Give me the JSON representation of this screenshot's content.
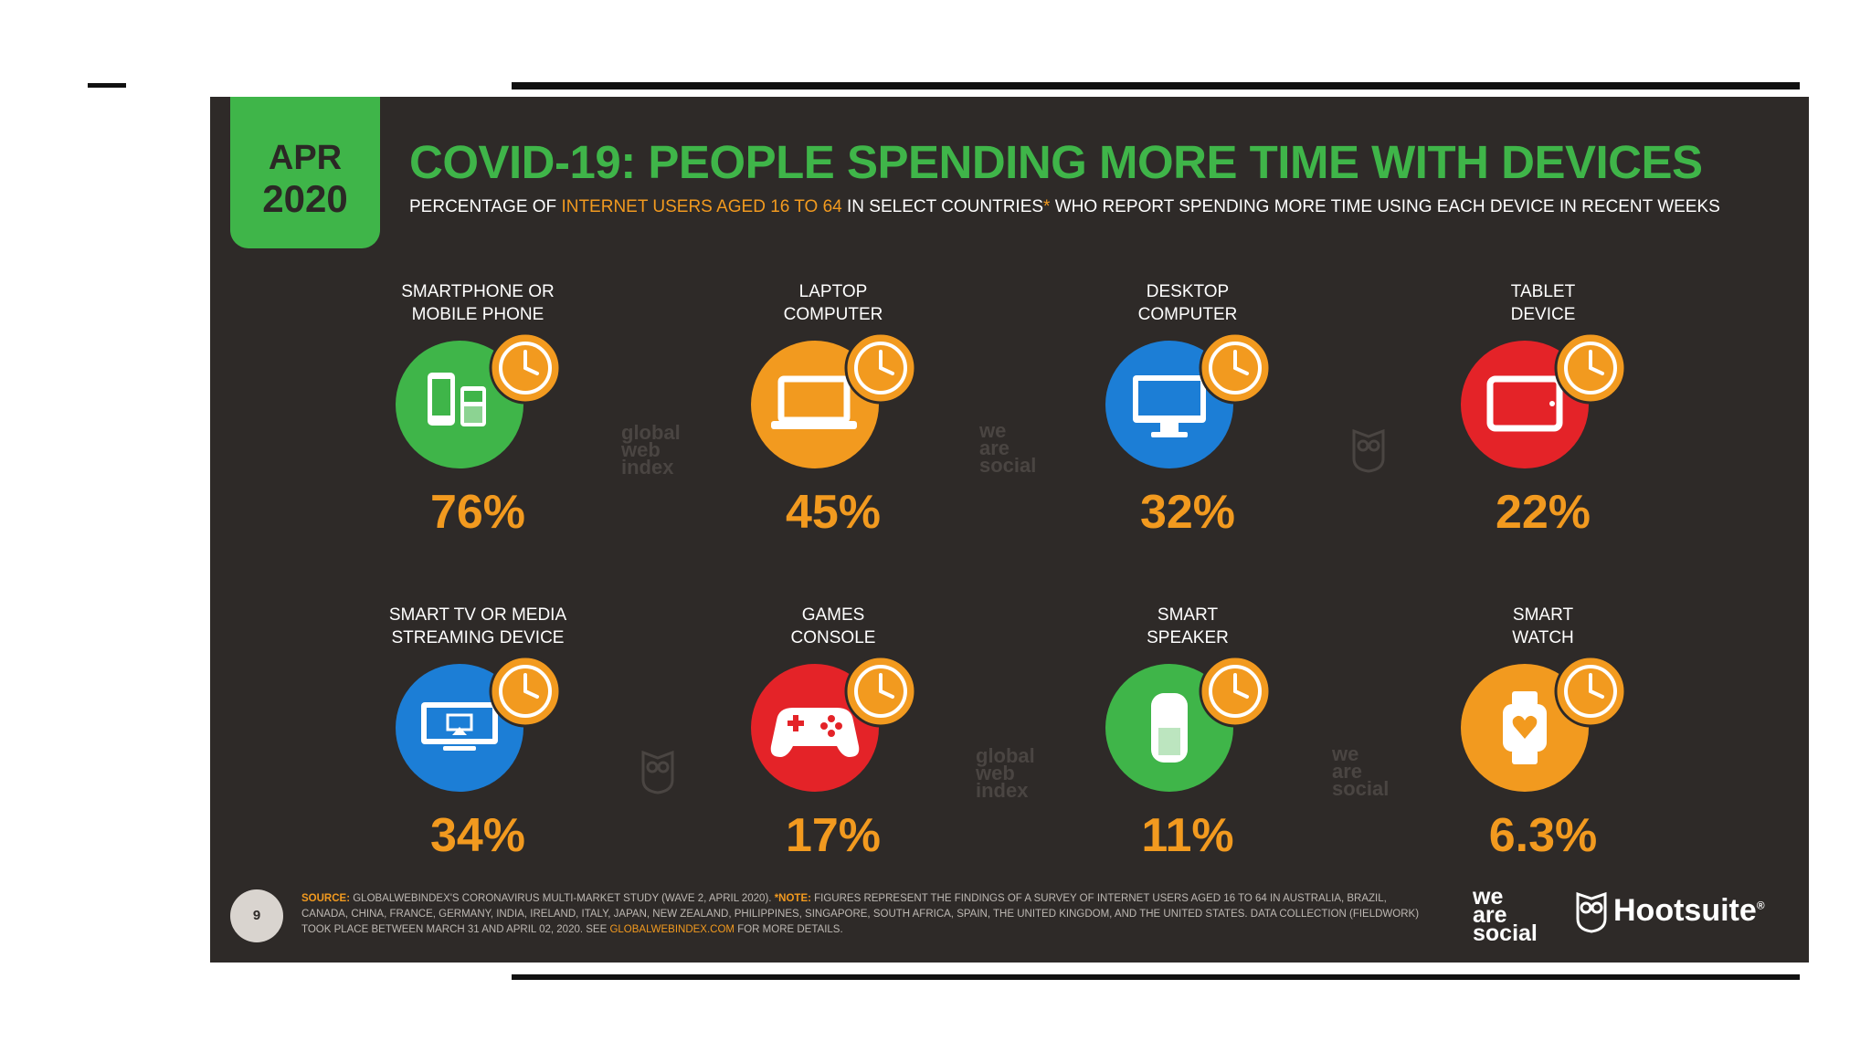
{
  "badge": {
    "month": "APR",
    "year": "2020"
  },
  "title": "COVID-19: PEOPLE SPENDING MORE TIME WITH DEVICES",
  "subtitle": {
    "part1": "PERCENTAGE OF ",
    "highlight": "INTERNET USERS AGED 16 TO 64",
    "part2": " IN SELECT COUNTRIES",
    "asterisk": "*",
    "part3": " WHO REPORT SPENDING MORE TIME USING EACH DEVICE IN RECENT WEEKS"
  },
  "chart_data": {
    "type": "table",
    "title": "COVID-19: PEOPLE SPENDING MORE TIME WITH DEVICES",
    "unit": "%",
    "categories": [
      "SMARTPHONE OR MOBILE PHONE",
      "LAPTOP COMPUTER",
      "DESKTOP COMPUTER",
      "TABLET DEVICE",
      "SMART TV OR MEDIA STREAMING DEVICE",
      "GAMES CONSOLE",
      "SMART SPEAKER",
      "SMART WATCH"
    ],
    "values": [
      76,
      45,
      32,
      22,
      34,
      17,
      11,
      6.3
    ]
  },
  "devices": [
    {
      "line1": "SMARTPHONE OR",
      "line2": "MOBILE PHONE",
      "value": "76%",
      "color": "#3fb549"
    },
    {
      "line1": "LAPTOP",
      "line2": "COMPUTER",
      "value": "45%",
      "color": "#f29a1f"
    },
    {
      "line1": "DESKTOP",
      "line2": "COMPUTER",
      "value": "32%",
      "color": "#1c7ed6"
    },
    {
      "line1": "TABLET",
      "line2": "DEVICE",
      "value": "22%",
      "color": "#e42328"
    },
    {
      "line1": "SMART TV OR MEDIA",
      "line2": "STREAMING DEVICE",
      "value": "34%",
      "color": "#1c7ed6"
    },
    {
      "line1": "GAMES",
      "line2": "CONSOLE",
      "value": "17%",
      "color": "#e42328"
    },
    {
      "line1": "SMART",
      "line2": "SPEAKER",
      "value": "11%",
      "color": "#3fb549"
    },
    {
      "line1": "SMART",
      "line2": "WATCH",
      "value": "6.3%",
      "color": "#f29a1f"
    }
  ],
  "watermarks": {
    "gwi": [
      "global",
      "web",
      "index"
    ],
    "was": [
      "we",
      "are",
      "social"
    ]
  },
  "footer": {
    "page": "9",
    "source_label": "SOURCE:",
    "source_text": " GLOBALWEBINDEX'S CORONAVIRUS MULTI-MARKET STUDY (WAVE 2, APRIL 2020). ",
    "note_label": "*NOTE:",
    "note_text": " FIGURES REPRESENT THE FINDINGS OF A SURVEY OF INTERNET USERS AGED 16 TO 64 IN AUSTRALIA, BRAZIL, CANADA, CHINA, FRANCE, GERMANY, INDIA, IRELAND, ITALY, JAPAN, NEW ZEALAND, PHILIPPINES, SINGAPORE, SOUTH AFRICA, SPAIN, THE UNITED KINGDOM, AND THE UNITED STATES. DATA COLLECTION (FIELDWORK) TOOK PLACE BETWEEN MARCH 31 AND APRIL 02, 2020. SEE ",
    "link": "GLOBALWEBINDEX.COM",
    "tail": " FOR MORE DETAILS.",
    "brand1": [
      "we",
      "are",
      "social"
    ],
    "brand2": "Hootsuite",
    "brand2_mark": "®"
  },
  "colors": {
    "background": "#2e2a28",
    "green": "#3fb549",
    "orange": "#f29a1f",
    "blue": "#1c7ed6",
    "red": "#e42328"
  }
}
